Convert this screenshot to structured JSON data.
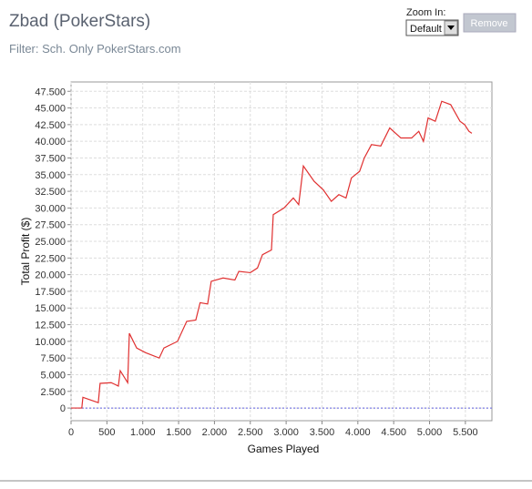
{
  "header": {
    "title": "Zbad (PokerStars)",
    "filter": "Filter: Sch. Only PokerStars.com",
    "zoom_label": "Zoom In:",
    "zoom_value": "Default",
    "remove_button": "Remove"
  },
  "chart_data": {
    "type": "line",
    "color": "#e03030",
    "xlabel": "Games Played",
    "ylabel": "Total Profit ($)",
    "grid": true,
    "x": [
      0,
      150,
      165,
      380,
      405,
      560,
      660,
      686,
      790,
      813,
      915,
      1040,
      1230,
      1295,
      1485,
      1613,
      1740,
      1800,
      1905,
      1955,
      2120,
      2285,
      2340,
      2500,
      2600,
      2670,
      2795,
      2820,
      2970,
      3100,
      3175,
      3240,
      3390,
      3520,
      3630,
      3735,
      3835,
      3910,
      4025,
      4090,
      4190,
      4320,
      4445,
      4600,
      4750,
      4850,
      4915,
      4980,
      5080,
      5170,
      5295,
      5425,
      5490,
      5550,
      5590
    ],
    "values": [
      0,
      0,
      1600,
      800,
      3700,
      3800,
      3300,
      5600,
      3800,
      11200,
      9000,
      8300,
      7500,
      9000,
      10000,
      13000,
      13200,
      15800,
      15600,
      19000,
      19500,
      19200,
      20500,
      20300,
      21000,
      23000,
      23700,
      29000,
      30000,
      31500,
      30500,
      36300,
      34000,
      32700,
      31000,
      32000,
      31500,
      34500,
      35500,
      37500,
      39500,
      39300,
      42000,
      40500,
      40500,
      41500,
      40000,
      43500,
      43000,
      46000,
      45500,
      43000,
      42500,
      41500,
      41200
    ],
    "xlim": [
      0,
      5870
    ],
    "ylim": [
      -1900,
      48900
    ],
    "xticks": [
      0,
      500,
      {
        "value": 1000,
        "label": "1.000"
      },
      {
        "value": 1500,
        "label": "1.500"
      },
      {
        "value": 2000,
        "label": "2.000"
      },
      {
        "value": 2500,
        "label": "2.500"
      },
      {
        "value": 3000,
        "label": "3.000"
      },
      {
        "value": 3500,
        "label": "3.500"
      },
      {
        "value": 4000,
        "label": "4.000"
      },
      {
        "value": 4500,
        "label": "4.500"
      },
      {
        "value": 5000,
        "label": "5.000"
      },
      {
        "value": 5500,
        "label": "5.500"
      }
    ],
    "yticks": [
      0,
      {
        "value": 2500,
        "label": "2.500"
      },
      {
        "value": 5000,
        "label": "5.000"
      },
      {
        "value": 7500,
        "label": "7.500"
      },
      {
        "value": 10000,
        "label": "10.000"
      },
      {
        "value": 12500,
        "label": "12.500"
      },
      {
        "value": 15000,
        "label": "15.000"
      },
      {
        "value": 17500,
        "label": "17.500"
      },
      {
        "value": 20000,
        "label": "20.000"
      },
      {
        "value": 22500,
        "label": "22.500"
      },
      {
        "value": 25000,
        "label": "25.000"
      },
      {
        "value": 27500,
        "label": "27.500"
      },
      {
        "value": 30000,
        "label": "30.000"
      },
      {
        "value": 32500,
        "label": "32.500"
      },
      {
        "value": 35000,
        "label": "35.000"
      },
      {
        "value": 37500,
        "label": "37.500"
      },
      {
        "value": 40000,
        "label": "40.000"
      },
      {
        "value": 42500,
        "label": "42.500"
      },
      {
        "value": 45000,
        "label": "45.000"
      },
      {
        "value": 47500,
        "label": "47.500"
      }
    ]
  }
}
